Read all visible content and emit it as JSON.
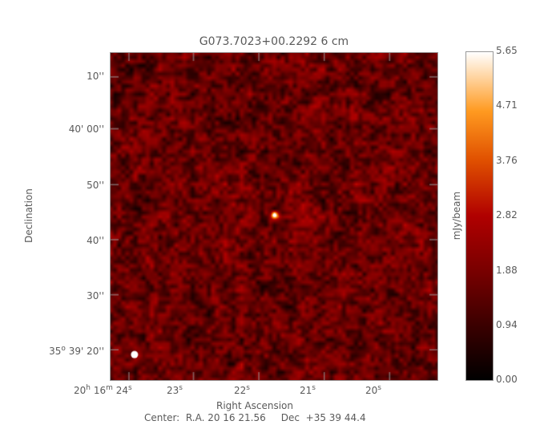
{
  "chart_data": {
    "type": "heatmap",
    "title": "G073.7023+00.2292 6 cm",
    "xlabel": "Right Ascension",
    "ylabel": "Declination",
    "x_ticks": [
      {
        "h": "20",
        "m": "16",
        "s": "24"
      },
      {
        "s": "23"
      },
      {
        "s": "22"
      },
      {
        "s": "21"
      },
      {
        "s": "20"
      }
    ],
    "y_ticks": [
      {
        "label": "10''"
      },
      {
        "label": "40' 00''"
      },
      {
        "label": "50''"
      },
      {
        "label": "40''"
      },
      {
        "label": "30''"
      },
      {
        "deg": "35",
        "label": " 39' 20''"
      }
    ],
    "colorbar": {
      "label": "mJy/beam",
      "ticks": [
        "5.65",
        "4.71",
        "3.76",
        "2.82",
        "1.88",
        "0.94",
        "0.00"
      ],
      "range": [
        0.0,
        5.65
      ],
      "colormap": "black-red-orange-white"
    },
    "center_text": "Center:  R.A. 20 16 21.56     Dec  +35 39 44.4",
    "peak_position": {
      "ra": "20 16 21.6",
      "dec": "+35 39 44.6"
    },
    "background_level": 1.6,
    "peak_value": 5.65,
    "beam_color": "#ffffff"
  }
}
